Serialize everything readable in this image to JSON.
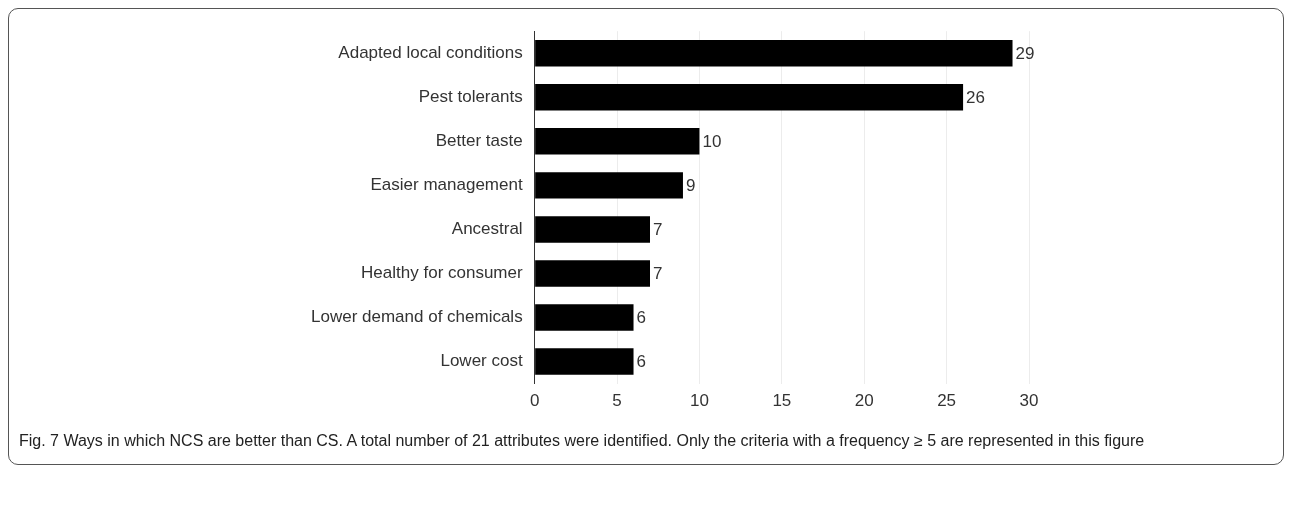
{
  "chart_data": {
    "type": "bar",
    "orientation": "horizontal",
    "categories": [
      "Adapted local conditions",
      "Pest tolerants",
      "Better taste",
      "Easier management",
      "Ancestral",
      "Healthy for consumer",
      "Lower demand of chemicals",
      "Lower cost"
    ],
    "values": [
      29,
      26,
      10,
      9,
      7,
      7,
      6,
      6
    ],
    "color": "#000000",
    "xlim": [
      0,
      30
    ],
    "xticks": [
      0,
      5,
      10,
      15,
      20,
      25,
      30
    ],
    "grid": "x",
    "data_labels": true,
    "legend": false,
    "annotations": [
      "Fig. 7 Ways in which NCS are better than CS. A total number of 21 attributes were identified. Only the criteria with a frequency ≥ 5 are represented in this figure"
    ]
  }
}
